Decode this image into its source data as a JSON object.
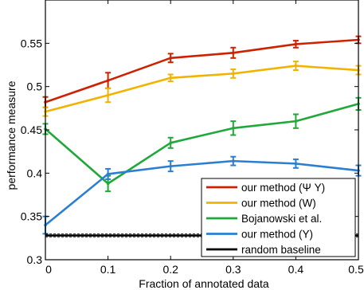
{
  "chart_data": {
    "type": "line",
    "title": "",
    "xlabel": "Fraction of annotated data",
    "ylabel": "performance measure",
    "xlim": [
      0,
      0.5
    ],
    "ylim": [
      0.3,
      0.6
    ],
    "xticks": [
      0,
      0.1,
      0.2,
      0.3,
      0.4,
      0.5
    ],
    "xtick_labels": [
      "0",
      "0.1",
      "0.2",
      "0.3",
      "0.4",
      "0.5"
    ],
    "yticks": [
      0.3,
      0.35,
      0.4,
      0.45,
      0.5,
      0.55
    ],
    "ytick_labels": [
      "0.3",
      "0.35",
      "0.4",
      "0.45",
      "0.5",
      "0.55"
    ],
    "grid": false,
    "legend_position": "bottom-right",
    "x": [
      0,
      0.1,
      0.2,
      0.3,
      0.4,
      0.5
    ],
    "series": [
      {
        "name": "our method (Ψ Y)",
        "color": "#cc2200",
        "values": [
          0.482,
          0.507,
          0.533,
          0.539,
          0.549,
          0.554
        ],
        "errors": [
          0.006,
          0.009,
          0.005,
          0.006,
          0.004,
          0.004
        ]
      },
      {
        "name": "our method (W)",
        "color": "#f0b400",
        "values": [
          0.471,
          0.49,
          0.51,
          0.515,
          0.524,
          0.519
        ],
        "errors": [
          0.005,
          0.008,
          0.004,
          0.005,
          0.005,
          0.005
        ]
      },
      {
        "name": "Bojanowski et al.",
        "color": "#20a83a",
        "values": [
          0.451,
          0.388,
          0.435,
          0.452,
          0.46,
          0.48
        ],
        "errors": [
          0.006,
          0.009,
          0.006,
          0.008,
          0.008,
          0.007
        ]
      },
      {
        "name": "our method (Y)",
        "color": "#2a7fd2",
        "values": [
          0.34,
          0.399,
          0.408,
          0.414,
          0.411,
          0.403
        ],
        "errors": [
          0.01,
          0.006,
          0.006,
          0.005,
          0.005,
          0.006
        ]
      },
      {
        "name": "random baseline",
        "color": "#000000",
        "values": [
          0.328,
          0.328,
          0.328,
          0.328,
          0.328,
          0.328
        ],
        "band": 0.002
      }
    ]
  }
}
